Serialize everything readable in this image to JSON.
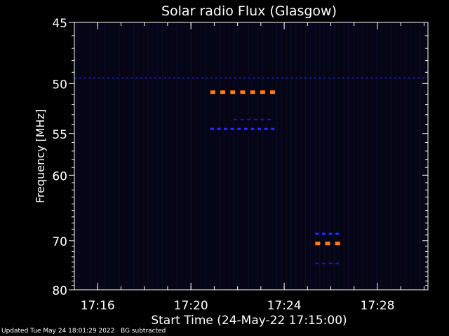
{
  "chart_data": {
    "type": "heatmap",
    "title": "Solar radio Flux (Glasgow)",
    "xlabel": "Start Time (24-May-22 17:15:00)",
    "ylabel": "Frequency [MHz]",
    "xlim": [
      "17:15:00",
      "17:30:10"
    ],
    "ylim": [
      45,
      80
    ],
    "x_ticks": [
      "17:16",
      "17:20",
      "17:24",
      "17:28"
    ],
    "x_tick_minutes": [
      16,
      20,
      24,
      28
    ],
    "y_ticks": [
      45,
      50,
      55,
      60,
      70,
      80
    ],
    "grid": false,
    "colors": {
      "background": "#000000",
      "plot_bg": "#050514",
      "axes": "#ffffff",
      "low": "#1a1aa0",
      "mid": "#2a2aff",
      "high": "#ff7a1a"
    },
    "features": [
      {
        "name": "dashed-band-49.5",
        "freq_mhz": 49.5,
        "start": "17:15:00",
        "end": "17:30:10",
        "level": "low"
      },
      {
        "name": "burst-51",
        "freq_mhz": 50.8,
        "start": "17:20:50",
        "end": "17:23:30",
        "level": "high"
      },
      {
        "name": "burst-53",
        "freq_mhz": 53.5,
        "start": "17:21:50",
        "end": "17:23:30",
        "level": "low"
      },
      {
        "name": "burst-54.5",
        "freq_mhz": 54.5,
        "start": "17:20:50",
        "end": "17:23:30",
        "level": "mid"
      },
      {
        "name": "burst-68.8",
        "freq_mhz": 68.8,
        "start": "17:25:20",
        "end": "17:26:30",
        "level": "mid"
      },
      {
        "name": "burst-70.5",
        "freq_mhz": 70.5,
        "start": "17:25:20",
        "end": "17:26:30",
        "level": "high"
      },
      {
        "name": "burst-74.3",
        "freq_mhz": 74.3,
        "start": "17:25:20",
        "end": "17:26:30",
        "level": "low"
      }
    ]
  },
  "footer": {
    "updated": "Updated Tue May 24 18:01:29 2022",
    "note": "BG subtracted"
  }
}
